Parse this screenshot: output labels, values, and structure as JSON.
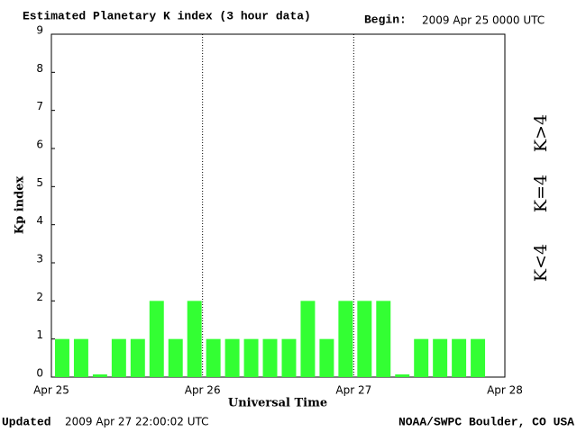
{
  "chart_data": {
    "type": "bar",
    "title": "Estimated Planetary K index (3 hour data)",
    "begin_label": "Begin:",
    "begin": "2009 Apr 25 0000 UTC",
    "x_label": "Universal Time",
    "y_label": "Kp index",
    "updated_label": "Updated",
    "updated": "2009 Apr 27 22:00:02 UTC",
    "credit": "NOAA/SWPC Boulder, CO USA",
    "x": [
      0,
      3,
      6,
      9,
      12,
      15,
      18,
      21,
      24,
      27,
      30,
      33,
      36,
      39,
      42,
      45,
      48,
      51,
      54,
      57,
      60,
      63,
      66
    ],
    "values": [
      1,
      1,
      0,
      1,
      1,
      2,
      1,
      2,
      1,
      1,
      1,
      1,
      1,
      2,
      1,
      2,
      2,
      2,
      0,
      1,
      1,
      1,
      1
    ],
    "color": "#33ff33",
    "xlim": [
      0,
      72
    ],
    "xticks": [
      {
        "value": 0,
        "label": "Apr 25"
      },
      {
        "value": 24,
        "label": "Apr 26"
      },
      {
        "value": 48,
        "label": "Apr 27"
      },
      {
        "value": 72,
        "label": "Apr 28"
      }
    ],
    "ylim": [
      0,
      9
    ],
    "yticks": [
      0,
      1,
      2,
      3,
      4,
      5,
      6,
      7,
      8,
      9
    ],
    "legend": [
      {
        "name": "K<4",
        "color": "#33dd33"
      },
      {
        "name": "K=4",
        "color": "#ffcc00"
      },
      {
        "name": "K>4",
        "color": "#ff3300"
      }
    ]
  }
}
